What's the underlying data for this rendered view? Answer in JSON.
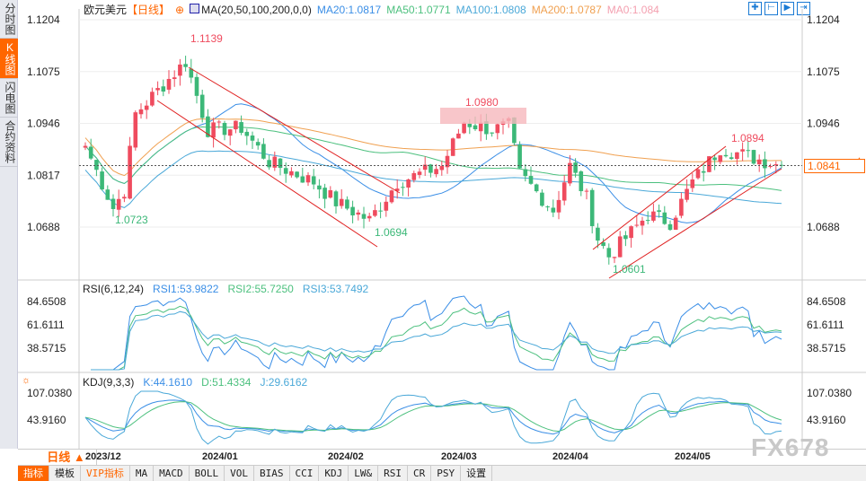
{
  "sidebar": {
    "items": [
      {
        "label": "分时图",
        "active": false
      },
      {
        "label": "K线图",
        "active": true
      },
      {
        "label": "闪电图",
        "active": false
      },
      {
        "label": "合约资料",
        "active": false
      }
    ]
  },
  "header": {
    "symbol": "欧元美元",
    "period": "【日线】",
    "ma_label": "MA(20,50,100,200,0,0)",
    "ma20": "MA20:1.0817",
    "ma50": "MA50:1.0771",
    "ma100": "MA100:1.0808",
    "ma200": "MA200:1.0787",
    "ma0": "MA0:1.084"
  },
  "colors": {
    "up": "#ef4b5e",
    "down": "#3cb878",
    "ma20": "#3a8ee6",
    "ma50": "#4cc07e",
    "ma100": "#4aa8d8",
    "ma200": "#f0a050",
    "accent": "#ff6600"
  },
  "price_axis": [
    "1.1204",
    "1.1075",
    "1.0946",
    "1.0817",
    "1.0688"
  ],
  "current_price": "1.0841",
  "annotations": {
    "high1": "1.1139",
    "low1": "1.0723",
    "low2": "1.0694",
    "high2": "1.0980",
    "low3": "1.0601",
    "high3": "1.0894"
  },
  "rsi": {
    "title": "RSI(6,12,24)",
    "rsi1": "RSI1:53.9822",
    "rsi2": "RSI2:55.7250",
    "rsi3": "RSI3:53.7492",
    "axis": [
      "84.6508",
      "61.6111",
      "38.5715"
    ]
  },
  "kdj": {
    "title": "KDJ(9,3,3)",
    "k": "K:44.1610",
    "d": "D:51.4334",
    "j": "J:29.6162",
    "axis": [
      "107.0380",
      "43.9160"
    ]
  },
  "dates": [
    "2023/12",
    "2024/01",
    "2024/02",
    "2024/03",
    "2024/04",
    "2024/05"
  ],
  "period_selector": "日线 ▲",
  "toolbar": [
    "指标",
    "模板",
    "VIP指标",
    "MA",
    "MACD",
    "BOLL",
    "VOL",
    "BIAS",
    "CCI",
    "KDJ",
    "LW&",
    "RSI",
    "CR",
    "PSY",
    "设置"
  ],
  "watermark": "FX678",
  "chart_data": {
    "type": "candlestick",
    "ylim": [
      1.058,
      1.1225
    ],
    "price_path": [
      [
        0,
        1.089
      ],
      [
        5,
        1.0735
      ],
      [
        7,
        1.078
      ],
      [
        9,
        1.097
      ],
      [
        18,
        1.11
      ],
      [
        22,
        1.093
      ],
      [
        28,
        1.0935
      ],
      [
        33,
        1.085
      ],
      [
        41,
        1.08
      ],
      [
        45,
        1.075
      ],
      [
        51,
        1.0705
      ],
      [
        56,
        1.08
      ],
      [
        64,
        1.084
      ],
      [
        68,
        1.095
      ],
      [
        73,
        1.093
      ],
      [
        76,
        1.094
      ],
      [
        78,
        1.082
      ],
      [
        84,
        1.073
      ],
      [
        87,
        1.084
      ],
      [
        90,
        1.076
      ],
      [
        92,
        1.066
      ],
      [
        94,
        1.0615
      ],
      [
        101,
        1.072
      ],
      [
        105,
        1.07
      ],
      [
        109,
        1.08
      ],
      [
        114,
        1.0885
      ],
      [
        120,
        1.086
      ],
      [
        125,
        1.0841
      ]
    ]
  }
}
